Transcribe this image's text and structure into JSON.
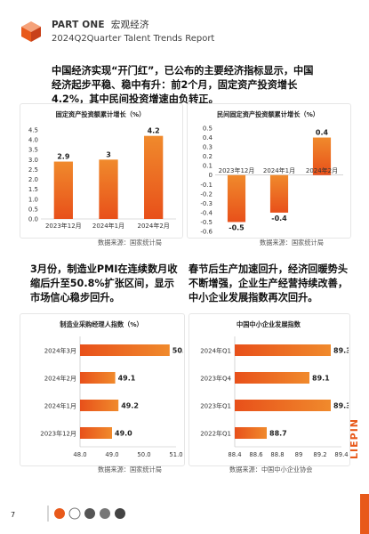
{
  "header": {
    "part": "PART ONE",
    "part_cn": "宏观经济",
    "report": "2024Q2Quarter Talent Trends Report"
  },
  "para1": "中国经济实现“开门红”，已公布的主要经济指标显示，中国经济起步平稳、稳中有升：前2个月，固定资产投资增长4.2%，其中民间投资增速由负转正。",
  "para2": "3月份，制造业PMI在连续数月收缩后升至50.8%扩张区间，显示市场信心稳步回升。",
  "para3": "春节后生产加速回升，经济回暖势头不断增强，企业生产经营持续改善，中小企业发展指数再次回升。",
  "chart_data": [
    {
      "type": "bar",
      "title": "固定资产投资额累计增长（%）",
      "categories": [
        "2023年12月",
        "2024年1月",
        "2024年2月"
      ],
      "values": [
        2.9,
        3.0,
        4.2
      ],
      "ylim": [
        0,
        4.5
      ],
      "yticks": [
        "0.0",
        "0.5",
        "1.0",
        "1.5",
        "2.0",
        "2.5",
        "3.0",
        "3.5",
        "4.0",
        "4.5"
      ],
      "source": "数据来源：国家统计局"
    },
    {
      "type": "bar",
      "title": "民间固定资产投资额累计增长（%）",
      "categories": [
        "2023年12月",
        "2024年1月",
        "2024年2月"
      ],
      "values": [
        -0.5,
        -0.4,
        0.4
      ],
      "ylim": [
        -0.6,
        0.5
      ],
      "yticks": [
        "0.5",
        "0.4",
        "0.3",
        "0.2",
        "0.1",
        "0",
        "-0.1",
        "-0.2",
        "-0.3",
        "-0.4",
        "-0.5",
        "-0.6"
      ],
      "source": "数据来源：国家统计局"
    },
    {
      "type": "bar",
      "orientation": "horizontal",
      "title": "制造业采购经理人指数（%）",
      "categories": [
        "2024年3月",
        "2024年2月",
        "2024年1月",
        "2023年12月"
      ],
      "values": [
        50.8,
        49.1,
        49.2,
        49.0
      ],
      "xlim": [
        48.0,
        51.0
      ],
      "xticks": [
        "48.0",
        "49.0",
        "50.0",
        "51.0"
      ],
      "source": "数据来源：国家统计局"
    },
    {
      "type": "bar",
      "orientation": "horizontal",
      "title": "中国中小企业发展指数",
      "categories": [
        "2024年Q1",
        "2023年Q4",
        "2023年Q1",
        "2022年Q1"
      ],
      "values": [
        89.3,
        89.1,
        89.3,
        88.7
      ],
      "xlim": [
        88.4,
        89.4
      ],
      "xticks": [
        "88.4",
        "88.6",
        "88.8",
        "89",
        "89.2",
        "89.4"
      ],
      "source": "数据来源：中国中小企业协会"
    }
  ],
  "footer": {
    "page": "7",
    "brand": "LIEPIN"
  },
  "colors": {
    "accent": "#e8591a",
    "bar_top": "#f08a2c",
    "bar_bottom": "#e8501a"
  }
}
